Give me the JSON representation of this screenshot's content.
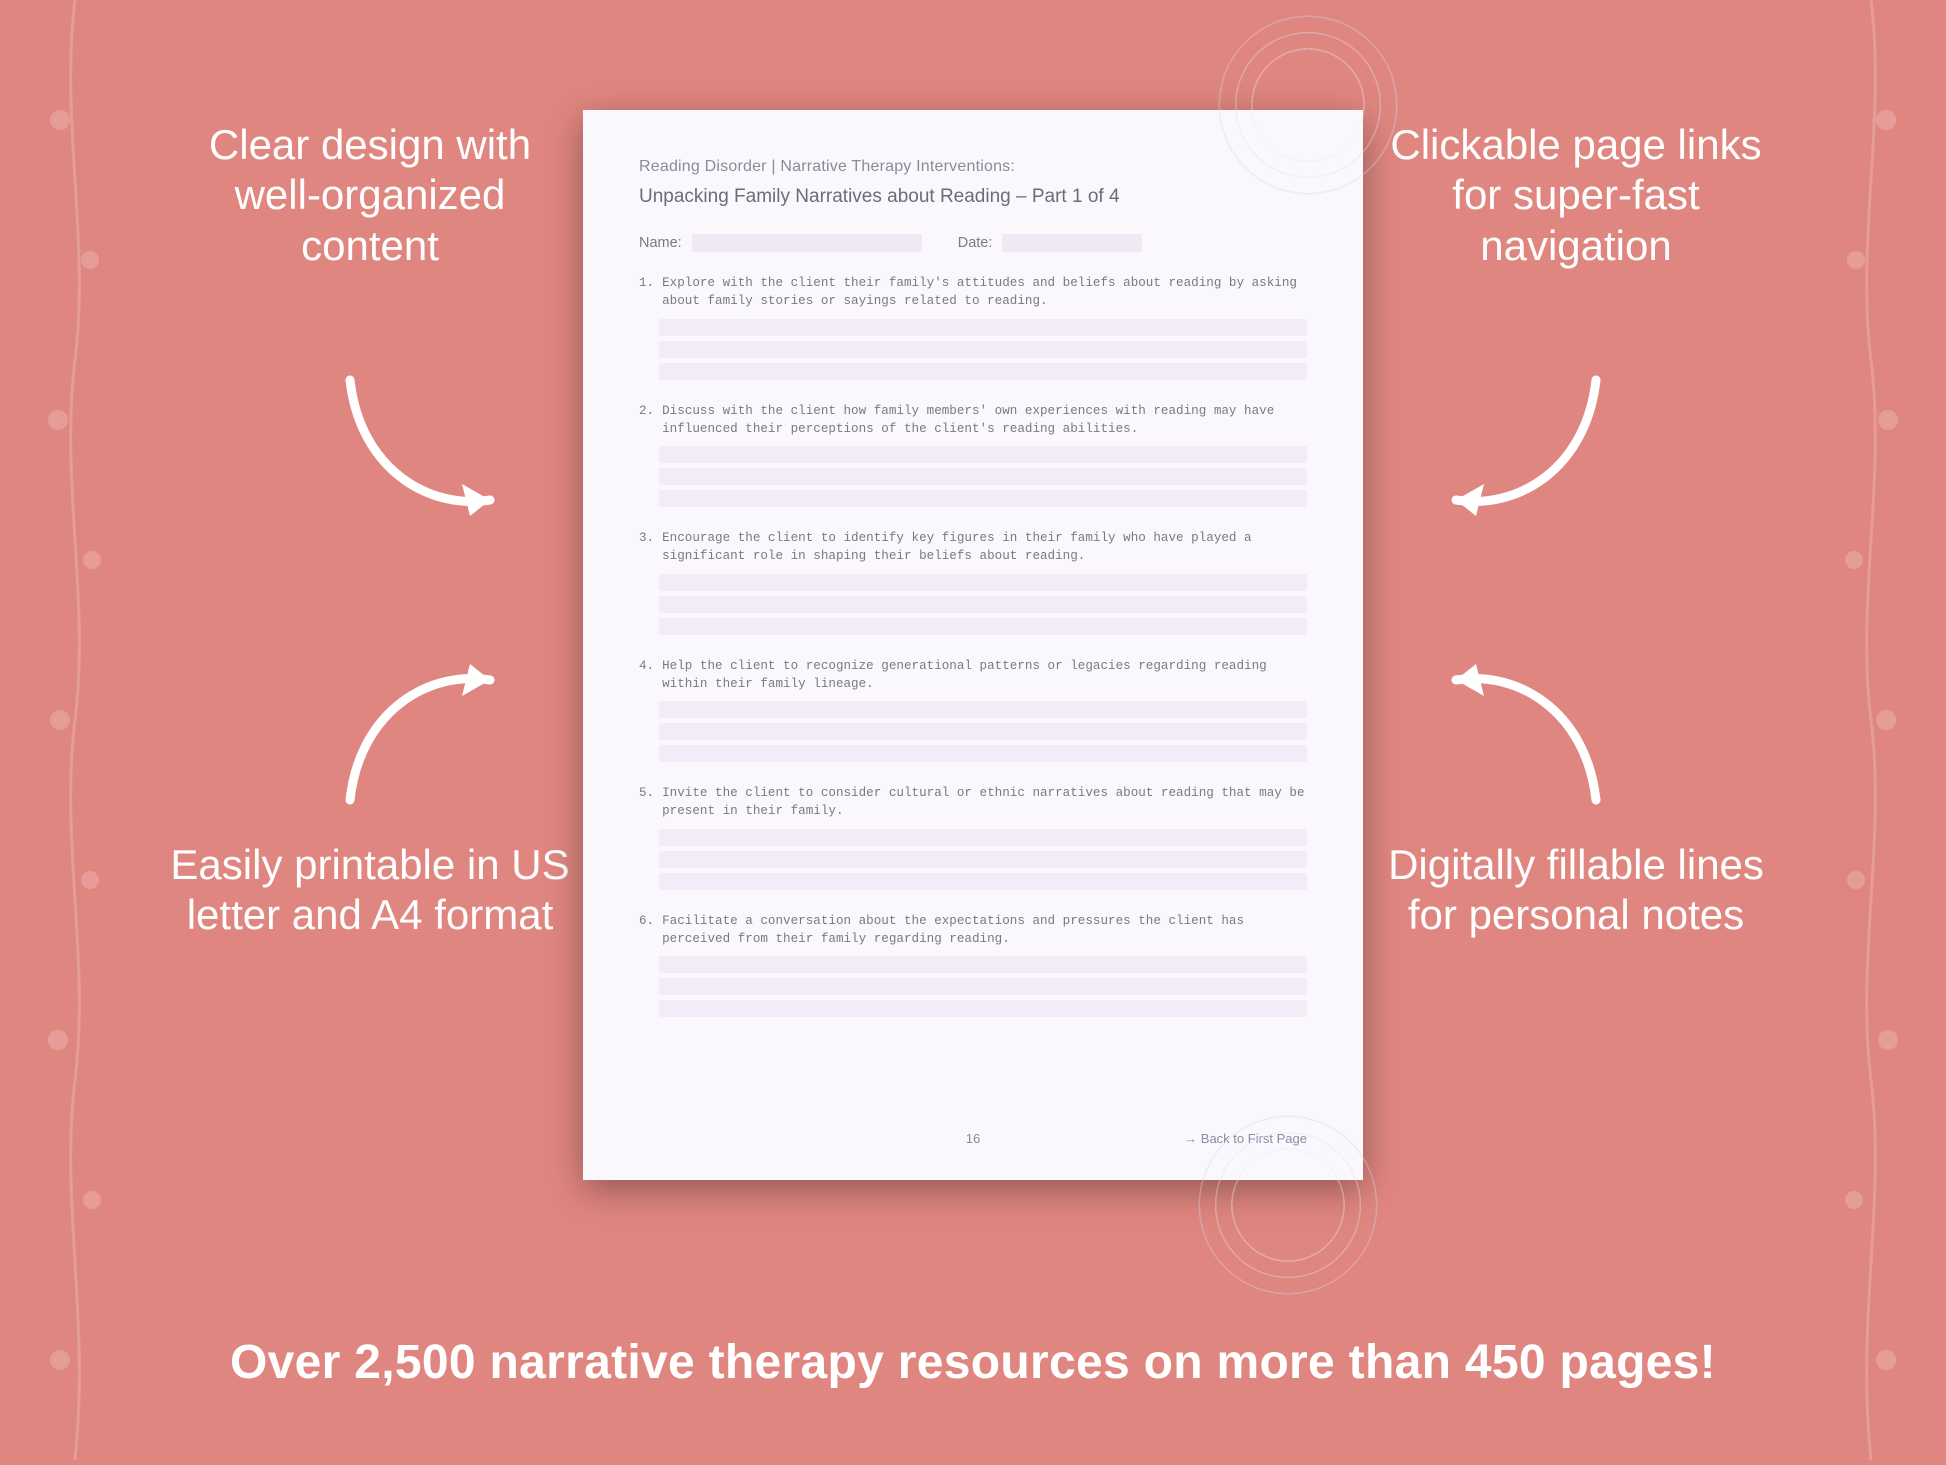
{
  "background_color": "#e08680",
  "page_bg": "#fbf8fd",
  "fill_line_color": "#f1ecf7",
  "callouts": {
    "top_left": "Clear design with well-organized content",
    "top_right": "Clickable page links for super-fast navigation",
    "bottom_left": "Easily printable in US letter and A4 format",
    "bottom_right": "Digitally fillable lines for personal notes"
  },
  "document": {
    "category": "Reading Disorder | Narrative Therapy Interventions:",
    "title": "Unpacking Family Narratives about Reading – Part 1 of 4",
    "name_label": "Name:",
    "date_label": "Date:",
    "questions": [
      "Explore with the client their family's attitudes and beliefs about reading by asking about family stories or sayings related to reading.",
      "Discuss with the client how family members' own experiences with reading may have influenced their perceptions of the client's reading abilities.",
      "Encourage the client to identify key figures in their family who have played a significant role in shaping their beliefs about reading.",
      "Help the client to recognize generational patterns or legacies regarding reading within their family lineage.",
      "Invite the client to consider cultural or ethnic narratives about reading that may be present in their family.",
      "Facilitate a conversation about the expectations and pressures the client has perceived from their family regarding reading."
    ],
    "page_number": "16",
    "back_link": "→ Back to First Page"
  },
  "banner": "Over 2,500 narrative therapy resources on more than 450 pages!"
}
